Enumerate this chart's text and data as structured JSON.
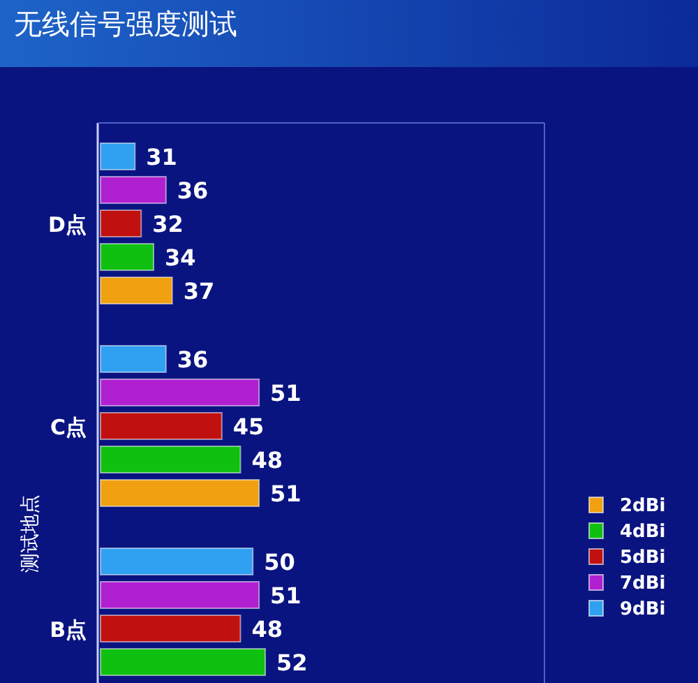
{
  "chart_data": {
    "type": "bar",
    "orientation": "horizontal",
    "title": "无线信号强度测试",
    "ylabel": "测试地点",
    "categories": [
      "D点",
      "C点",
      "B点"
    ],
    "series": [
      {
        "name": "2dBi",
        "color": "#f0a010",
        "values": [
          37,
          51,
          null
        ]
      },
      {
        "name": "4dBi",
        "color": "#10c010",
        "values": [
          34,
          48,
          52
        ]
      },
      {
        "name": "5dBi",
        "color": "#c01010",
        "values": [
          32,
          45,
          48
        ]
      },
      {
        "name": "7dBi",
        "color": "#b020d0",
        "values": [
          36,
          51,
          51
        ]
      },
      {
        "name": "9dBi",
        "color": "#30a0f0",
        "values": [
          31,
          36,
          50
        ]
      }
    ],
    "xlim": [
      25,
      97
    ],
    "data_labels": true,
    "legend": "bottom right",
    "tick_labels": "y"
  }
}
